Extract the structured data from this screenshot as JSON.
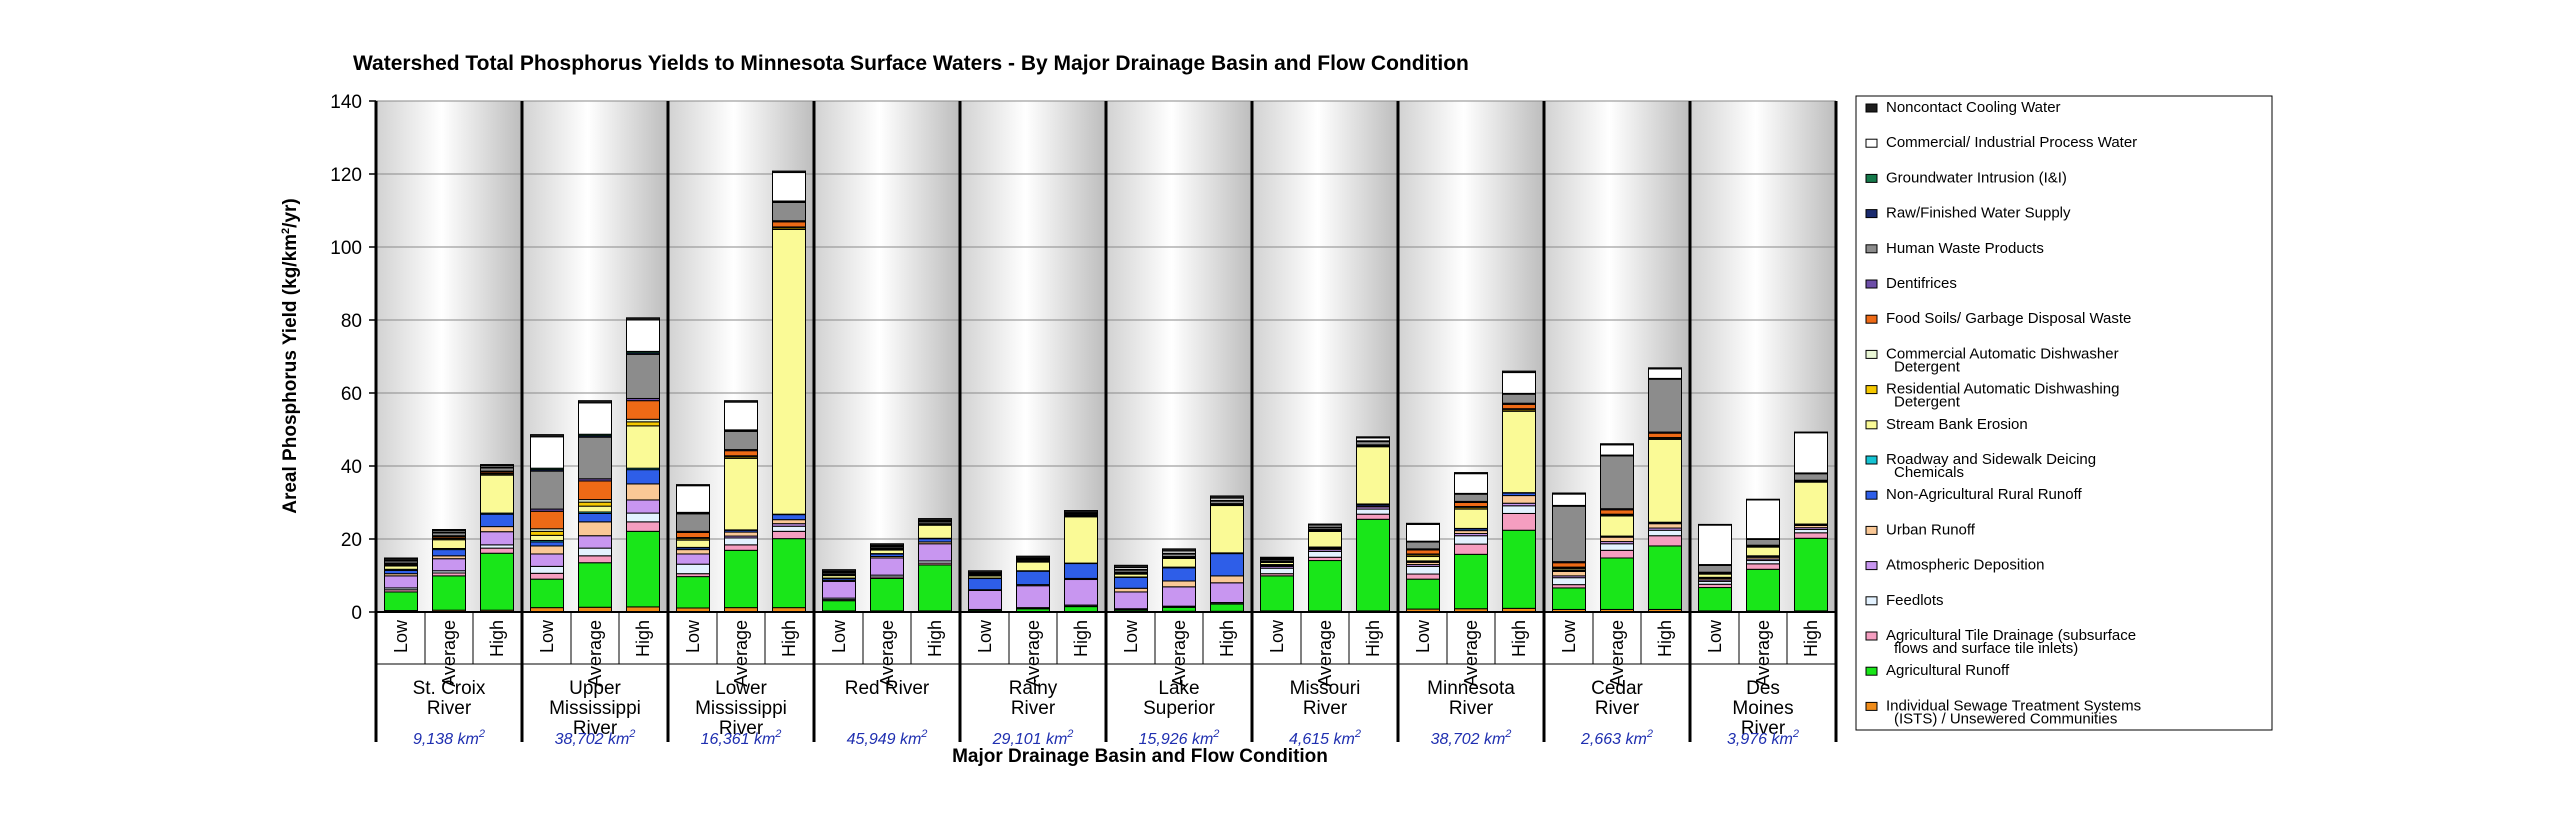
{
  "chart_data": {
    "type": "bar",
    "stacked": true,
    "title": "Watershed Total Phosphorus Yields to Minnesota Surface Waters - By Major Drainage Basin and Flow Condition",
    "xlabel": "Major Drainage Basin and Flow Condition",
    "ylabel": "Areal Phosphorus Yield (kg/km",
    "ylabel_sup": "2",
    "ylabel_tail": "/yr)",
    "ylim": [
      0,
      140
    ],
    "yticks": [
      "0",
      "20",
      "40",
      "60",
      "80",
      "100",
      "120",
      "140"
    ],
    "flow_conditions": [
      "Low",
      "Average",
      "High"
    ],
    "legend_position": "right",
    "legend": [
      {
        "key": "isds",
        "label1": "Individual Sewage Treatment Systems",
        "label2": "(ISTS) / Unsewered Communities",
        "color": "#f08c1a"
      },
      {
        "key": "agro",
        "label1": "Agricultural Runoff",
        "label2": "",
        "color": "#19e619"
      },
      {
        "key": "tile",
        "label1": "Agricultural Tile Drainage (subsurface",
        "label2": "flows and surface tile inlets)",
        "color": "#f59ec0"
      },
      {
        "key": "feed",
        "label1": "Feedlots",
        "label2": "",
        "color": "#e3f2ff"
      },
      {
        "key": "atmo",
        "label1": "Atmospheric Deposition",
        "label2": "",
        "color": "#c896f0"
      },
      {
        "key": "urban",
        "label1": "Urban Runoff",
        "label2": "",
        "color": "#fac896"
      },
      {
        "key": "nonag",
        "label1": "Non-Agricultural Rural Runoff",
        "label2": "",
        "color": "#2e5ee8"
      },
      {
        "key": "road",
        "label1": "Roadway and Sidewalk Deicing",
        "label2": "Chemicals",
        "color": "#15c3d3"
      },
      {
        "key": "bank",
        "label1": "Stream Bank Erosion",
        "label2": "",
        "color": "#fafa96"
      },
      {
        "key": "resd",
        "label1": "Residential Automatic Dishwashing",
        "label2": "Detergent",
        "color": "#f5c800"
      },
      {
        "key": "comd",
        "label1": "Commercial Automatic Dishwasher",
        "label2": "Detergent",
        "color": "#eaf7d6"
      },
      {
        "key": "food",
        "label1": "Food Soils/ Garbage Disposal Waste",
        "label2": "",
        "color": "#ee6a16"
      },
      {
        "key": "dent",
        "label1": "Dentifrices",
        "label2": "",
        "color": "#6d4ea8"
      },
      {
        "key": "human",
        "label1": "Human Waste Products",
        "label2": "",
        "color": "#8c8c8c"
      },
      {
        "key": "water",
        "label1": "Raw/Finished Water Supply",
        "label2": "",
        "color": "#1a2a6e"
      },
      {
        "key": "gw",
        "label1": "Groundwater Intrusion (I&I)",
        "label2": "",
        "color": "#15794a"
      },
      {
        "key": "cip",
        "label1": "Commercial/ Industrial Process Water",
        "label2": "",
        "color": "#ffffff"
      },
      {
        "key": "ncw",
        "label1": "Noncontact Cooling Water",
        "label2": "",
        "color": "#1e1e1e"
      }
    ],
    "basins": [
      {
        "name_lines": [
          "St. Croix",
          "River"
        ],
        "area": "9,138 km",
        "bars": [
          {
            "isds": 0.4,
            "agro": 5.1,
            "tile": 0.6,
            "feed": 0.5,
            "atmo": 3.3,
            "urban": 0.6,
            "nonag": 0.9,
            "road": 0.3,
            "bank": 0.9,
            "resd": 0.2,
            "comd": 0.1,
            "food": 0.3,
            "dent": 0.2,
            "human": 0.6,
            "water": 0.1,
            "gw": 0.1,
            "cip": 0.3,
            "ncw": 0.3
          },
          {
            "isds": 0.5,
            "agro": 9.4,
            "tile": 0.8,
            "feed": 0.6,
            "atmo": 3.3,
            "urban": 0.8,
            "nonag": 1.7,
            "road": 0.3,
            "bank": 2.4,
            "resd": 0.3,
            "comd": 0.2,
            "food": 0.4,
            "dent": 0.2,
            "human": 0.8,
            "water": 0.1,
            "gw": 0.1,
            "cip": 0.4,
            "ncw": 0.3
          },
          {
            "isds": 0.5,
            "agro": 15.6,
            "tile": 1.4,
            "feed": 0.9,
            "atmo": 3.6,
            "urban": 1.4,
            "nonag": 3.4,
            "road": 0.3,
            "bank": 10.4,
            "resd": 0.3,
            "comd": 0.2,
            "food": 0.4,
            "dent": 0.2,
            "human": 0.9,
            "water": 0.1,
            "gw": 0.1,
            "cip": 0.4,
            "ncw": 0.3
          }
        ]
      },
      {
        "name_lines": [
          "Upper",
          "Mississippi",
          "River"
        ],
        "area": "38,702 km",
        "bars": [
          {
            "isds": 1.2,
            "agro": 7.8,
            "tile": 1.6,
            "feed": 1.9,
            "atmo": 3.4,
            "urban": 2.2,
            "nonag": 1.1,
            "road": 0.4,
            "bank": 1.4,
            "resd": 1.1,
            "comd": 0.7,
            "food": 4.8,
            "dent": 0.6,
            "human": 10.4,
            "water": 0.4,
            "gw": 0.4,
            "cip": 8.6,
            "ncw": 0.6
          },
          {
            "isds": 1.3,
            "agro": 12.2,
            "tile": 1.9,
            "feed": 2.1,
            "atmo": 3.4,
            "urban": 3.8,
            "nonag": 2.3,
            "road": 0.4,
            "bank": 1.6,
            "resd": 1.1,
            "comd": 0.7,
            "food": 5.1,
            "dent": 0.6,
            "human": 11.4,
            "water": 0.4,
            "gw": 0.4,
            "cip": 8.6,
            "ncw": 0.6
          },
          {
            "isds": 1.4,
            "agro": 20.7,
            "tile": 2.6,
            "feed": 2.4,
            "atmo": 3.6,
            "urban": 4.4,
            "nonag": 3.9,
            "road": 0.4,
            "bank": 11.6,
            "resd": 1.1,
            "comd": 0.7,
            "food": 5.1,
            "dent": 0.6,
            "human": 12.1,
            "water": 0.4,
            "gw": 0.4,
            "cip": 8.6,
            "ncw": 0.6
          }
        ]
      },
      {
        "name_lines": [
          "Lower",
          "Mississippi",
          "River"
        ],
        "area": "16,361 km",
        "bars": [
          {
            "isds": 1.1,
            "agro": 8.6,
            "tile": 0.8,
            "feed": 2.6,
            "atmo": 2.8,
            "urban": 1.2,
            "nonag": 0.5,
            "road": 0.1,
            "bank": 2.0,
            "resd": 0.4,
            "comd": 0.3,
            "food": 1.4,
            "dent": 0.3,
            "human": 4.8,
            "water": 0.2,
            "gw": 0.2,
            "cip": 7.3,
            "ncw": 0.3
          },
          {
            "isds": 1.2,
            "agro": 15.7,
            "tile": 1.5,
            "feed": 1.9,
            "atmo": 0.5,
            "urban": 1.1,
            "nonag": 0.5,
            "road": 0.1,
            "bank": 19.6,
            "resd": 0.4,
            "comd": 0.3,
            "food": 1.4,
            "dent": 0.3,
            "human": 5.0,
            "water": 0.2,
            "gw": 0.2,
            "cip": 7.6,
            "ncw": 0.4
          },
          {
            "isds": 1.2,
            "agro": 18.9,
            "tile": 2.0,
            "feed": 1.4,
            "atmo": 0.7,
            "urban": 1.1,
            "nonag": 1.4,
            "road": 0.1,
            "bank": 78.0,
            "resd": 0.4,
            "comd": 0.3,
            "food": 1.4,
            "dent": 0.3,
            "human": 5.0,
            "water": 0.2,
            "gw": 0.2,
            "cip": 7.8,
            "ncw": 0.4
          }
        ]
      },
      {
        "name_lines": [
          "Red River"
        ],
        "area": "45,949 km",
        "bars": [
          {
            "isds": 0.3,
            "agro": 2.8,
            "tile": 0.3,
            "feed": 0.4,
            "atmo": 4.6,
            "urban": 0.3,
            "nonag": 0.5,
            "road": 0.1,
            "bank": 0.7,
            "resd": 0.1,
            "comd": 0.1,
            "food": 0.1,
            "dent": 0.1,
            "human": 0.4,
            "water": 0.1,
            "gw": 0.1,
            "cip": 0.1,
            "ncw": 0.5
          },
          {
            "isds": 0.3,
            "agro": 8.9,
            "tile": 0.4,
            "feed": 0.5,
            "atmo": 4.7,
            "urban": 0.4,
            "nonag": 0.7,
            "road": 0.1,
            "bank": 1.0,
            "resd": 0.1,
            "comd": 0.1,
            "food": 0.1,
            "dent": 0.1,
            "human": 0.4,
            "water": 0.1,
            "gw": 0.1,
            "cip": 0.2,
            "ncw": 0.5
          },
          {
            "isds": 0.3,
            "agro": 12.6,
            "tile": 0.5,
            "feed": 0.6,
            "atmo": 4.7,
            "urban": 0.5,
            "nonag": 0.9,
            "road": 0.1,
            "bank": 3.6,
            "resd": 0.1,
            "comd": 0.1,
            "food": 0.1,
            "dent": 0.1,
            "human": 0.5,
            "water": 0.1,
            "gw": 0.1,
            "cip": 0.2,
            "ncw": 0.5
          }
        ]
      },
      {
        "name_lines": [
          "Rainy",
          "River"
        ],
        "area": "29,101 km",
        "bars": [
          {
            "isds": 0.1,
            "agro": 0.4,
            "tile": 0.1,
            "feed": 0.1,
            "atmo": 5.2,
            "urban": 0.2,
            "nonag": 3.1,
            "road": 0.1,
            "bank": 0.6,
            "resd": 0.1,
            "comd": 0.1,
            "food": 0.1,
            "dent": 0.1,
            "human": 0.2,
            "water": 0.1,
            "gw": 0.1,
            "cip": 0.1,
            "ncw": 0.5
          },
          {
            "isds": 0.1,
            "agro": 0.8,
            "tile": 0.1,
            "feed": 0.2,
            "atmo": 6.0,
            "urban": 0.3,
            "nonag": 3.7,
            "road": 0.1,
            "bank": 2.4,
            "resd": 0.1,
            "comd": 0.1,
            "food": 0.1,
            "dent": 0.1,
            "human": 0.3,
            "water": 0.1,
            "gw": 0.1,
            "cip": 0.2,
            "ncw": 0.5
          },
          {
            "isds": 0.1,
            "agro": 1.4,
            "tile": 0.1,
            "feed": 0.3,
            "atmo": 7.0,
            "urban": 0.3,
            "nonag": 4.1,
            "road": 0.1,
            "bank": 12.7,
            "resd": 0.1,
            "comd": 0.1,
            "food": 0.1,
            "dent": 0.1,
            "human": 0.3,
            "water": 0.1,
            "gw": 0.1,
            "cip": 0.3,
            "ncw": 0.5
          }
        ]
      },
      {
        "name_lines": [
          "Lake",
          "Superior"
        ],
        "area": "15,926 km",
        "bars": [
          {
            "isds": 0.2,
            "agro": 0.4,
            "tile": 0.1,
            "feed": 0.2,
            "atmo": 4.6,
            "urban": 1.0,
            "nonag": 3.0,
            "road": 0.1,
            "bank": 0.8,
            "resd": 0.1,
            "comd": 0.1,
            "food": 0.2,
            "dent": 0.1,
            "human": 0.6,
            "water": 0.1,
            "gw": 0.1,
            "cip": 0.5,
            "ncw": 0.6
          },
          {
            "isds": 0.2,
            "agro": 1.1,
            "tile": 0.1,
            "feed": 0.2,
            "atmo": 5.3,
            "urban": 1.6,
            "nonag": 3.6,
            "road": 0.2,
            "bank": 2.4,
            "resd": 0.1,
            "comd": 0.1,
            "food": 0.2,
            "dent": 0.1,
            "human": 0.7,
            "water": 0.1,
            "gw": 0.1,
            "cip": 0.6,
            "ncw": 0.6
          },
          {
            "isds": 0.2,
            "agro": 2.0,
            "tile": 0.1,
            "feed": 0.3,
            "atmo": 5.4,
            "urban": 1.9,
            "nonag": 6.1,
            "road": 0.2,
            "bank": 13.0,
            "resd": 0.1,
            "comd": 0.1,
            "food": 0.2,
            "dent": 0.1,
            "human": 0.7,
            "water": 0.1,
            "gw": 0.1,
            "cip": 0.6,
            "ncw": 0.6
          }
        ]
      },
      {
        "name_lines": [
          "Missouri",
          "River"
        ],
        "area": "4,615 km",
        "bars": [
          {
            "isds": 0.3,
            "agro": 9.6,
            "tile": 0.6,
            "feed": 1.5,
            "atmo": 0.5,
            "urban": 0.2,
            "nonag": 0.2,
            "road": 0.1,
            "bank": 0.6,
            "resd": 0.1,
            "comd": 0.1,
            "food": 0.1,
            "dent": 0.1,
            "human": 0.4,
            "water": 0.1,
            "gw": 0.1,
            "cip": 0.2,
            "ncw": 0.2
          },
          {
            "isds": 0.3,
            "agro": 13.8,
            "tile": 0.9,
            "feed": 1.6,
            "atmo": 0.5,
            "urban": 0.3,
            "nonag": 0.3,
            "road": 0.1,
            "bank": 4.3,
            "resd": 0.1,
            "comd": 0.1,
            "food": 0.2,
            "dent": 0.1,
            "human": 0.5,
            "water": 0.1,
            "gw": 0.1,
            "cip": 0.5,
            "ncw": 0.3
          },
          {
            "isds": 0.3,
            "agro": 25.1,
            "tile": 1.4,
            "feed": 1.4,
            "atmo": 0.6,
            "urban": 0.3,
            "nonag": 0.4,
            "road": 0.1,
            "bank": 15.7,
            "resd": 0.1,
            "comd": 0.1,
            "food": 0.2,
            "dent": 0.1,
            "human": 0.9,
            "water": 0.1,
            "gw": 0.1,
            "cip": 0.8,
            "ncw": 0.3
          }
        ]
      },
      {
        "name_lines": [
          "Minnesota",
          "River"
        ],
        "area": "38,702 km",
        "bars": [
          {
            "isds": 0.8,
            "agro": 8.2,
            "tile": 1.4,
            "feed": 2.1,
            "atmo": 0.5,
            "urban": 0.6,
            "nonag": 0.3,
            "road": 0.1,
            "bank": 1.2,
            "resd": 0.4,
            "comd": 0.3,
            "food": 1.1,
            "dent": 0.3,
            "human": 1.9,
            "water": 0.1,
            "gw": 0.1,
            "cip": 4.6,
            "ncw": 0.3
          },
          {
            "isds": 0.9,
            "agro": 14.9,
            "tile": 2.8,
            "feed": 2.3,
            "atmo": 0.6,
            "urban": 0.8,
            "nonag": 0.5,
            "road": 0.1,
            "bank": 5.3,
            "resd": 0.4,
            "comd": 0.3,
            "food": 1.1,
            "dent": 0.3,
            "human": 2.0,
            "water": 0.1,
            "gw": 0.1,
            "cip": 5.4,
            "ncw": 0.3
          },
          {
            "isds": 1.0,
            "agro": 21.4,
            "tile": 4.6,
            "feed": 2.1,
            "atmo": 0.7,
            "urban": 2.1,
            "nonag": 0.7,
            "road": 0.1,
            "bank": 22.3,
            "resd": 0.4,
            "comd": 0.3,
            "food": 1.2,
            "dent": 0.3,
            "human": 2.5,
            "water": 0.1,
            "gw": 0.1,
            "cip": 5.7,
            "ncw": 0.4
          }
        ]
      },
      {
        "name_lines": [
          "Cedar",
          "River"
        ],
        "area": "2,663 km",
        "bars": [
          {
            "isds": 0.7,
            "agro": 5.9,
            "tile": 0.9,
            "feed": 1.9,
            "atmo": 0.5,
            "urban": 1.2,
            "nonag": 0.2,
            "road": 0.1,
            "bank": 0.4,
            "resd": 0.3,
            "comd": 0.2,
            "food": 1.2,
            "dent": 0.3,
            "human": 15.2,
            "water": 0.1,
            "gw": 0.1,
            "cip": 3.1,
            "ncw": 0.3
          },
          {
            "isds": 0.7,
            "agro": 14.1,
            "tile": 2.1,
            "feed": 1.8,
            "atmo": 0.6,
            "urban": 1.2,
            "nonag": 0.2,
            "road": 0.1,
            "bank": 5.5,
            "resd": 0.3,
            "comd": 0.2,
            "food": 1.2,
            "dent": 0.3,
            "human": 14.5,
            "water": 0.1,
            "gw": 0.1,
            "cip": 2.8,
            "ncw": 0.3
          },
          {
            "isds": 0.7,
            "agro": 17.4,
            "tile": 2.8,
            "feed": 1.5,
            "atmo": 0.6,
            "urban": 1.2,
            "nonag": 0.3,
            "road": 0.1,
            "bank": 22.7,
            "resd": 0.3,
            "comd": 0.2,
            "food": 1.2,
            "dent": 0.3,
            "human": 14.5,
            "water": 0.1,
            "gw": 0.1,
            "cip": 2.6,
            "ncw": 0.3
          }
        ]
      },
      {
        "name_lines": [
          "Des",
          "Moines",
          "River"
        ],
        "area": "3,976 km",
        "bars": [
          {
            "isds": 0.3,
            "agro": 6.4,
            "tile": 0.9,
            "feed": 0.8,
            "atmo": 0.4,
            "urban": 0.4,
            "nonag": 0.2,
            "road": 0.1,
            "bank": 0.9,
            "resd": 0.1,
            "comd": 0.1,
            "food": 0.2,
            "dent": 0.1,
            "human": 1.9,
            "water": 0.1,
            "gw": 0.1,
            "cip": 10.8,
            "ncw": 0.2
          },
          {
            "isds": 0.3,
            "agro": 11.4,
            "tile": 1.5,
            "feed": 0.9,
            "atmo": 0.4,
            "urban": 0.5,
            "nonag": 0.3,
            "road": 0.1,
            "bank": 2.4,
            "resd": 0.1,
            "comd": 0.1,
            "food": 0.2,
            "dent": 0.1,
            "human": 1.6,
            "water": 0.1,
            "gw": 0.1,
            "cip": 10.6,
            "ncw": 0.2
          },
          {
            "isds": 0.3,
            "agro": 19.9,
            "tile": 1.5,
            "feed": 0.9,
            "atmo": 0.5,
            "urban": 0.6,
            "nonag": 0.3,
            "road": 0.1,
            "bank": 11.5,
            "resd": 0.1,
            "comd": 0.1,
            "food": 0.2,
            "dent": 0.1,
            "human": 1.8,
            "water": 0.1,
            "gw": 0.1,
            "cip": 11.0,
            "ncw": 0.2
          }
        ]
      }
    ]
  }
}
